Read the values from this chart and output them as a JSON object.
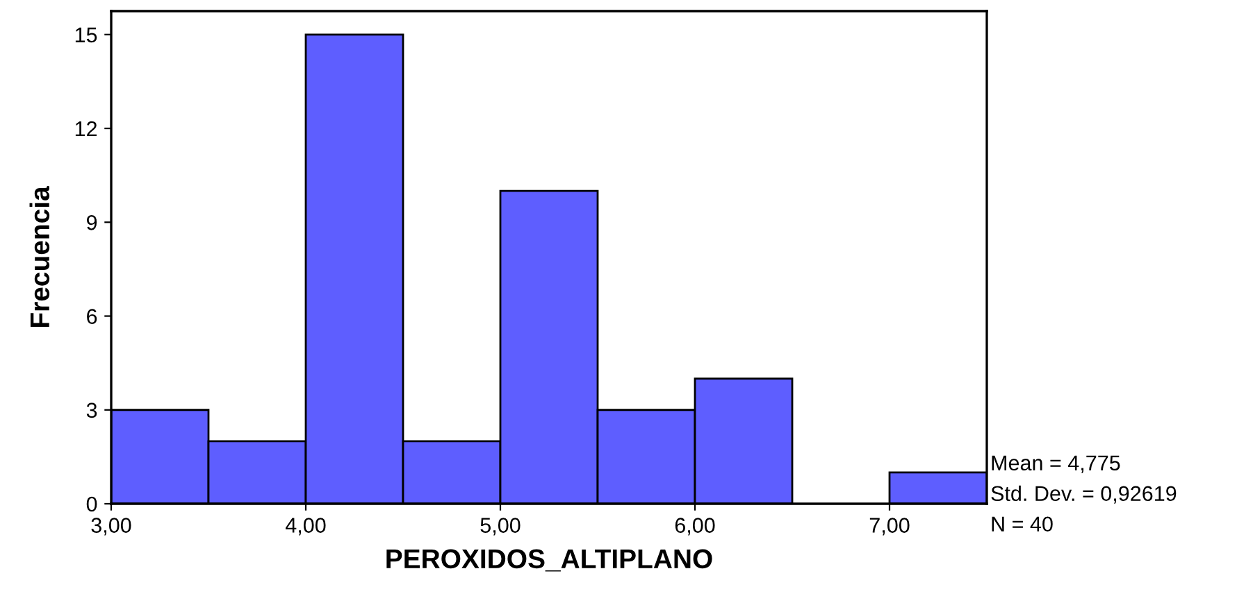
{
  "chart_data": {
    "type": "histogram",
    "xlabel": "PEROXIDOS_ALTIPLANO",
    "ylabel": "Frecuencia",
    "bins": [
      3.0,
      3.5,
      4.0,
      4.5,
      5.0,
      5.5,
      6.0,
      6.5,
      7.0,
      7.5
    ],
    "values": [
      3,
      2,
      15,
      2,
      10,
      3,
      4,
      0,
      1
    ],
    "color": "#5e5eff",
    "xlim": [
      3.0,
      7.5
    ],
    "xticks": [
      {
        "value": 3,
        "label": "3,00"
      },
      {
        "value": 4,
        "label": "4,00"
      },
      {
        "value": 5,
        "label": "5,00"
      },
      {
        "value": 6,
        "label": "6,00"
      },
      {
        "value": 7,
        "label": "7,00"
      }
    ],
    "ylim": [
      0,
      15.75
    ],
    "yticks": [
      0,
      3,
      6,
      9,
      12,
      15
    ],
    "grid": false,
    "annotations": [
      "Mean = 4,775",
      "Std. Dev. = 0,92619",
      "N = 40"
    ]
  }
}
